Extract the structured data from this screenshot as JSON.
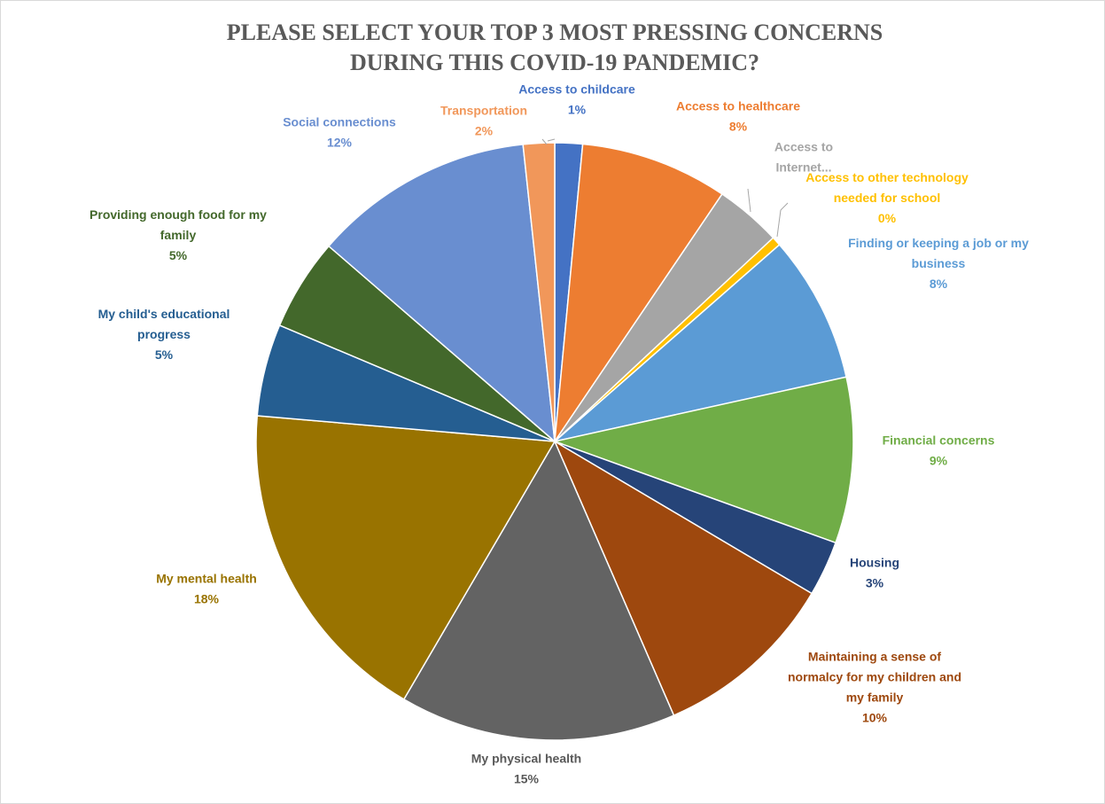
{
  "chart_data": {
    "type": "pie",
    "title": "PLEASE SELECT YOUR TOP 3 MOST PRESSING CONCERNS DURING THIS COVID-19 PANDEMIC?",
    "title_lines": [
      "PLEASE SELECT YOUR TOP 3 MOST PRESSING CONCERNS",
      "DURING THIS COVID-19 PANDEMIC?"
    ],
    "start": "top, clockwise",
    "legend": "none (data labels on chart)",
    "slices": [
      {
        "label": "Access to childcare",
        "label_lines": [
          "Access to childcare"
        ],
        "value": 1.5,
        "pct_label": "1%",
        "color": "#4472c4",
        "label_color": "#4472c4"
      },
      {
        "label": "Access to healthcare",
        "label_lines": [
          "Access to healthcare"
        ],
        "value": 8,
        "pct_label": "8%",
        "color": "#ed7d31",
        "label_color": "#ed7d31"
      },
      {
        "label": "Access to Internet...",
        "label_lines": [
          "Access to",
          "Internet..."
        ],
        "value": 3.6,
        "pct_label": "",
        "color": "#a5a5a5",
        "label_color": "#a5a5a5"
      },
      {
        "label": "Access to other technology needed for school",
        "label_lines": [
          "Access to other technology",
          "needed for school"
        ],
        "value": 0.5,
        "pct_label": "0%",
        "color": "#ffc000",
        "label_color": "#ffc000"
      },
      {
        "label": "Finding or keeping a job or my business",
        "label_lines": [
          "Finding or keeping a job or my",
          "business"
        ],
        "value": 8,
        "pct_label": "8%",
        "color": "#5b9bd5",
        "label_color": "#5b9bd5"
      },
      {
        "label": "Financial concerns",
        "label_lines": [
          "Financial concerns"
        ],
        "value": 9,
        "pct_label": "9%",
        "color": "#70ad47",
        "label_color": "#70ad47"
      },
      {
        "label": "Housing",
        "label_lines": [
          "Housing"
        ],
        "value": 3,
        "pct_label": "3%",
        "color": "#264478",
        "label_color": "#264478"
      },
      {
        "label": "Maintaining a sense of normalcy for my children and my family",
        "label_lines": [
          "Maintaining a sense of",
          "normalcy for my children and",
          "my family"
        ],
        "value": 10,
        "pct_label": "10%",
        "color": "#9e480e",
        "label_color": "#9e480e"
      },
      {
        "label": "My physical health",
        "label_lines": [
          "My physical health"
        ],
        "value": 15,
        "pct_label": "15%",
        "color": "#636363",
        "label_color": "#595959"
      },
      {
        "label": "My mental health",
        "label_lines": [
          "My mental health"
        ],
        "value": 18,
        "pct_label": "18%",
        "color": "#997300",
        "label_color": "#997300"
      },
      {
        "label": "My child's educational progress",
        "label_lines": [
          "My child's educational",
          "progress"
        ],
        "value": 5,
        "pct_label": "5%",
        "color": "#255e91",
        "label_color": "#255e91"
      },
      {
        "label": "Providing enough food for my family",
        "label_lines": [
          "Providing enough food for my",
          "family"
        ],
        "value": 5,
        "pct_label": "5%",
        "color": "#43682b",
        "label_color": "#43682b"
      },
      {
        "label": "Social connections",
        "label_lines": [
          "Social connections"
        ],
        "value": 12,
        "pct_label": "12%",
        "color": "#698ed0",
        "label_color": "#698ed0"
      },
      {
        "label": "Transportation",
        "label_lines": [
          "Transportation"
        ],
        "value": 1.7,
        "pct_label": "2%",
        "color": "#f1975a",
        "label_color": "#f1975a"
      }
    ]
  }
}
